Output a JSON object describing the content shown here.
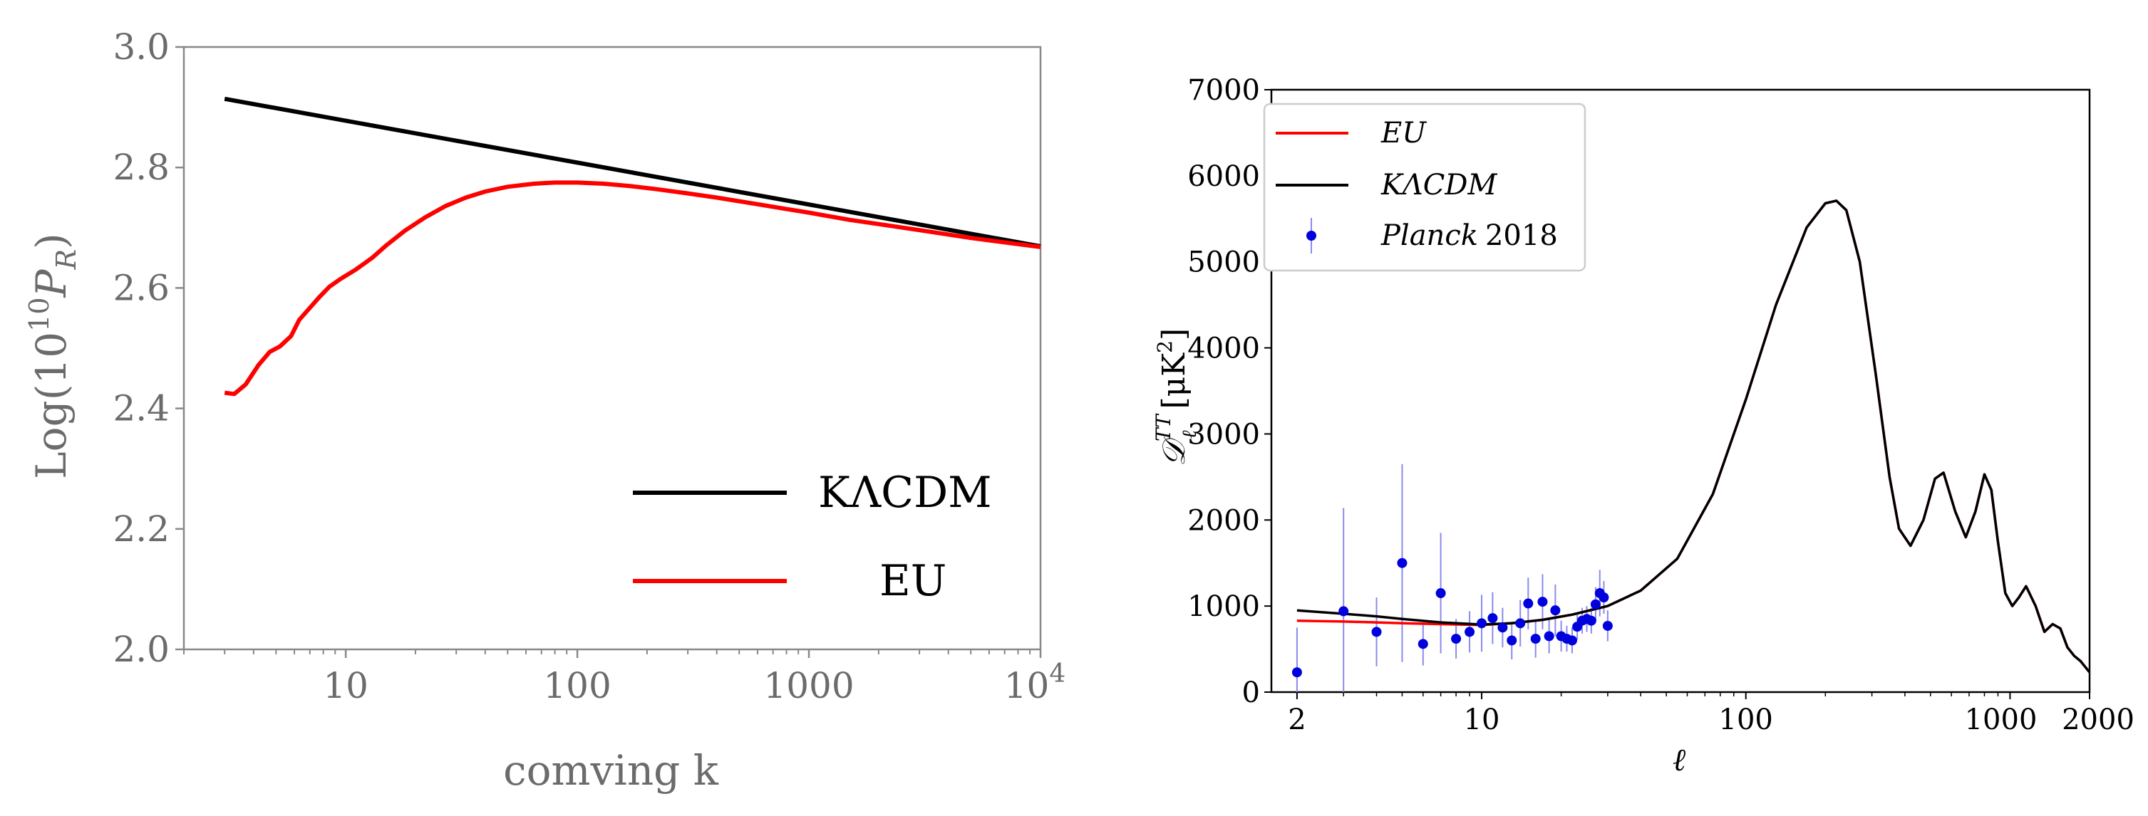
{
  "colors": {
    "eu": "#ff0000",
    "kacdm": "#000000",
    "planck": "#0000dd",
    "errorbar": "#8a8aee",
    "frame": "#888888"
  },
  "chart_data": [
    {
      "type": "line",
      "title": "",
      "xlabel": "comving k",
      "ylabel_prefix": "Log(10",
      "ylabel_exp": "10",
      "ylabel_var": "P",
      "ylabel_sub": "R",
      "ylabel_suffix": ")",
      "xscale": "log",
      "xlim": [
        2,
        10000
      ],
      "ylim": [
        2.0,
        3.0
      ],
      "xticks": [
        {
          "value": 10,
          "label": "10"
        },
        {
          "value": 100,
          "label": "100"
        },
        {
          "value": 1000,
          "label": "1000"
        }
      ],
      "xtick_last": {
        "value": 10000,
        "base": "10",
        "exp": "4"
      },
      "yticks": [
        {
          "value": 2.0,
          "label": "2.0"
        },
        {
          "value": 2.2,
          "label": "2.2"
        },
        {
          "value": 2.4,
          "label": "2.4"
        },
        {
          "value": 2.6,
          "label": "2.6"
        },
        {
          "value": 2.8,
          "label": "2.8"
        },
        {
          "value": 3.0,
          "label": "3.0"
        }
      ],
      "legend_position": "lower-right",
      "series": [
        {
          "name": "KΛCDM",
          "color": "#000000",
          "x": [
            3,
            10000
          ],
          "y": [
            2.914,
            2.669
          ]
        },
        {
          "name": "EU",
          "color": "#ff0000",
          "x": [
            3,
            3.3,
            3.7,
            4.2,
            4.7,
            5.2,
            5.8,
            6.3,
            7.0,
            7.7,
            8.5,
            9.5,
            11,
            13,
            15,
            18,
            22,
            27,
            33,
            40,
            50,
            65,
            80,
            100,
            130,
            170,
            220,
            300,
            400,
            600,
            800,
            1000,
            1500,
            2000,
            3000,
            5000,
            10000
          ],
          "y": [
            2.426,
            2.424,
            2.44,
            2.472,
            2.494,
            2.503,
            2.52,
            2.547,
            2.567,
            2.585,
            2.602,
            2.615,
            2.63,
            2.65,
            2.671,
            2.695,
            2.717,
            2.736,
            2.75,
            2.76,
            2.768,
            2.773,
            2.775,
            2.775,
            2.773,
            2.769,
            2.764,
            2.757,
            2.75,
            2.739,
            2.731,
            2.725,
            2.713,
            2.706,
            2.696,
            2.683,
            2.668
          ]
        }
      ]
    },
    {
      "type": "line",
      "title": "",
      "xlabel": "ℓ",
      "ylabel_main": "𝒟",
      "ylabel_sup": "TT",
      "ylabel_sub": "ℓ",
      "ylabel_unit": "[μK",
      "ylabel_unit_exp": "2",
      "ylabel_unit_close": "]",
      "xscale": "log",
      "xlim": [
        1.6,
        2000
      ],
      "ylim": [
        0,
        7000
      ],
      "xticks": [
        {
          "value": 2,
          "label": "2"
        },
        {
          "value": 10,
          "label": "10"
        },
        {
          "value": 100,
          "label": "100"
        },
        {
          "value": 1000,
          "label": "1000"
        },
        {
          "value": 2000,
          "label": "2000"
        }
      ],
      "yticks": [
        {
          "value": 0,
          "label": "0"
        },
        {
          "value": 1000,
          "label": "1000"
        },
        {
          "value": 2000,
          "label": "2000"
        },
        {
          "value": 3000,
          "label": "3000"
        },
        {
          "value": 4000,
          "label": "4000"
        },
        {
          "value": 5000,
          "label": "5000"
        },
        {
          "value": 6000,
          "label": "6000"
        },
        {
          "value": 7000,
          "label": "7000"
        }
      ],
      "legend_position": "upper-left",
      "legend_entries": [
        {
          "name": "EU",
          "style": "italic"
        },
        {
          "name": "KΛCDM",
          "style": "italic"
        },
        {
          "name_italic": "Planck",
          "name_rest": "2018"
        }
      ],
      "series": [
        {
          "name": "EU",
          "color": "#ff0000",
          "x": [
            2,
            3,
            4,
            5,
            7,
            10,
            13,
            17,
            22,
            30,
            40,
            55,
            75,
            100,
            130,
            170,
            200,
            220,
            240,
            270,
            310,
            350,
            380,
            420,
            470,
            520,
            560,
            620,
            680,
            740,
            800,
            850,
            900,
            960,
            1020,
            1080,
            1150,
            1250,
            1350,
            1450,
            1550,
            1650,
            1750,
            1850,
            2000
          ],
          "y": [
            830,
            820,
            810,
            800,
            790,
            780,
            800,
            840,
            900,
            1000,
            1180,
            1550,
            2300,
            3400,
            4500,
            5400,
            5680,
            5710,
            5600,
            5000,
            3700,
            2500,
            1900,
            1700,
            2000,
            2480,
            2550,
            2100,
            1800,
            2100,
            2530,
            2350,
            1750,
            1150,
            1000,
            1100,
            1230,
            1000,
            700,
            790,
            740,
            520,
            420,
            360,
            230
          ]
        },
        {
          "name": "KΛCDM",
          "color": "#000000",
          "x": [
            2,
            3,
            4,
            5,
            7,
            10,
            13,
            17,
            22,
            30,
            40,
            55,
            75,
            100,
            130,
            170,
            200,
            220,
            240,
            270,
            310,
            350,
            380,
            420,
            470,
            520,
            560,
            620,
            680,
            740,
            800,
            850,
            900,
            960,
            1020,
            1080,
            1150,
            1250,
            1350,
            1450,
            1550,
            1650,
            1750,
            1850,
            2000
          ],
          "y": [
            950,
            910,
            880,
            850,
            810,
            785,
            800,
            840,
            900,
            1000,
            1180,
            1550,
            2300,
            3400,
            4500,
            5400,
            5680,
            5710,
            5600,
            5000,
            3700,
            2500,
            1900,
            1700,
            2000,
            2480,
            2550,
            2100,
            1800,
            2100,
            2530,
            2350,
            1750,
            1150,
            1000,
            1100,
            1230,
            1000,
            700,
            790,
            740,
            520,
            420,
            360,
            230
          ]
        }
      ],
      "planck_2018": {
        "name": "Planck 2018",
        "x": [
          2,
          3,
          4,
          5,
          6,
          7,
          8,
          9,
          10,
          11,
          12,
          13,
          14,
          15,
          16,
          17,
          18,
          19,
          20,
          21,
          22,
          23,
          24,
          25,
          26,
          27,
          28,
          29,
          30
        ],
        "y": [
          230,
          940,
          700,
          1500,
          560,
          1150,
          620,
          700,
          800,
          860,
          750,
          600,
          800,
          1030,
          620,
          1050,
          650,
          950,
          650,
          620,
          600,
          760,
          830,
          850,
          830,
          1020,
          1150,
          1100,
          770
        ],
        "err": [
          520,
          1200,
          400,
          1150,
          250,
          700,
          230,
          240,
          330,
          300,
          230,
          220,
          270,
          300,
          220,
          320,
          200,
          300,
          180,
          150,
          150,
          150,
          150,
          150,
          150,
          200,
          270,
          190,
          180
        ]
      }
    }
  ]
}
